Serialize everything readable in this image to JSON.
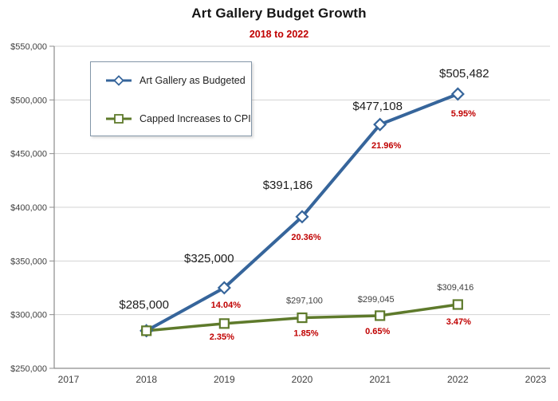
{
  "chart_data": {
    "type": "line",
    "title": "Art Gallery Budget Growth",
    "subtitle": "2018 to 2022",
    "xlabel": "",
    "ylabel": "",
    "x": [
      2018,
      2019,
      2020,
      2021,
      2022
    ],
    "xlim": [
      2017,
      2023
    ],
    "ylim": [
      250000,
      550000
    ],
    "ytick_step": 50000,
    "xticks": [
      "2017",
      "2018",
      "2019",
      "2020",
      "2021",
      "2022",
      "2023"
    ],
    "yticks": [
      "$550,000",
      "$500,000",
      "$450,000",
      "$400,000",
      "$350,000",
      "$300,000",
      "$250,000"
    ],
    "grid": true,
    "legend_position": "upper-left-inside",
    "series": [
      {
        "name": "Art Gallery as Budgeted",
        "color": "#36659B",
        "marker": "diamond",
        "line_width": 4,
        "values": [
          285000,
          325000,
          391186,
          477108,
          505482
        ],
        "value_labels": [
          "$285,000",
          "$325,000",
          "$391,186",
          "$477,108",
          "$505,482"
        ],
        "pct_labels": [
          "",
          "14.04%",
          "20.36%",
          "21.96%",
          "5.95%"
        ]
      },
      {
        "name": "Capped Increases to CPI",
        "color": "#5E7A2B",
        "marker": "square",
        "line_width": 3.5,
        "values": [
          285000,
          291698,
          297100,
          299045,
          309416
        ],
        "value_labels": [
          "",
          "",
          "$297,100",
          "$299,045",
          "$309,416"
        ],
        "pct_labels": [
          "",
          "2.35%",
          "1.85%",
          "0.65%",
          "3.47%"
        ]
      }
    ],
    "colors": {
      "subtitle": "#C00000",
      "pct_label": "#C00000",
      "gridline": "#D3D3D3",
      "axis": "#8C8C8C",
      "tick_label": "#3F3F3F",
      "value_label_primary": "#1C1C1C",
      "value_label_secondary": "#404040",
      "legend_border": "#8396A8"
    }
  }
}
